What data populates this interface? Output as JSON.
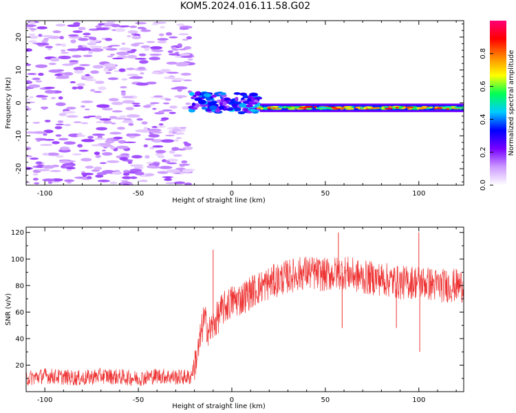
{
  "title": "KOM5.2024.016.11.58.G02",
  "chart_data": [
    {
      "type": "heatmap",
      "xlabel": "Height of straight line (km)",
      "ylabel": "Frequency (Hz)",
      "xlim": [
        -110,
        124
      ],
      "ylim": [
        -25,
        25
      ],
      "xticks": [
        -100,
        -50,
        0,
        50,
        100
      ],
      "yticks": [
        -20,
        -10,
        0,
        10,
        20
      ],
      "colorbar": {
        "label": "Normalized spectral amplitude",
        "range": [
          0.0,
          1.0
        ],
        "ticks": [
          0.0,
          0.2,
          0.4,
          0.6,
          0.8
        ],
        "colormap": [
          "#ffffff",
          "#cc99ff",
          "#7700ff",
          "#0000ff",
          "#00ccff",
          "#00ff55",
          "#ffff00",
          "#ff8800",
          "#ff0000",
          "#ff0077"
        ]
      },
      "regions": [
        {
          "x_range": [
            -110,
            -22
          ],
          "freq_range": [
            -25,
            25
          ],
          "amplitude": "scattered low (0.05-0.2)"
        },
        {
          "x_range": [
            -22,
            15
          ],
          "freq_center": 0,
          "freq_halfwidth": 3,
          "amplitude": "0.2-0.5"
        },
        {
          "x_range": [
            15,
            124
          ],
          "freq_center": -1.5,
          "freq_halfwidth": 1,
          "amplitude": "0.5-1.0"
        }
      ]
    },
    {
      "type": "line",
      "xlabel": "Height of straight line (km)",
      "ylabel": "SNR (v/v)",
      "xlim": [
        -110,
        124
      ],
      "ylim": [
        0,
        124
      ],
      "xticks": [
        -100,
        -50,
        0,
        50,
        100
      ],
      "yticks": [
        20,
        40,
        60,
        80,
        100,
        120
      ],
      "color": "#ee3333",
      "series": [
        {
          "x": [
            -110,
            -100,
            -90,
            -80,
            -70,
            -60,
            -50,
            -40,
            -30,
            -22,
            -18,
            -15,
            -12,
            -10,
            -5,
            0,
            5,
            10,
            20,
            30,
            40,
            50,
            60,
            70,
            80,
            90,
            100,
            110,
            124
          ],
          "values": [
            10,
            12,
            11,
            10,
            12,
            11,
            10,
            12,
            11,
            11,
            30,
            55,
            45,
            50,
            62,
            68,
            70,
            75,
            82,
            87,
            90,
            88,
            90,
            86,
            85,
            82,
            83,
            80,
            80
          ],
          "spikes": [
            {
              "x": -10,
              "value": 107
            },
            {
              "x": 57,
              "value": 120
            },
            {
              "x": 59,
              "value": 48
            },
            {
              "x": 88,
              "value": 48
            },
            {
              "x": 100,
              "value": 120
            },
            {
              "x": 100.5,
              "value": 30
            }
          ]
        }
      ]
    }
  ]
}
